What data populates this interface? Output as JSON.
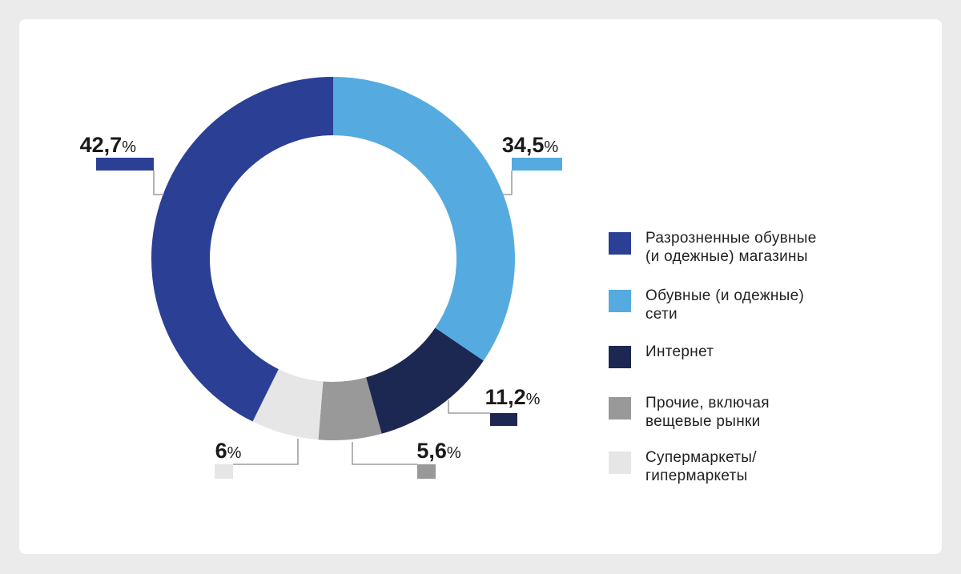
{
  "chart_data": {
    "type": "pie",
    "variant": "donut",
    "legend_position": "right",
    "slices": [
      {
        "label": "Разрозненные обувные\n(и одежные) магазины",
        "value": 42.7,
        "display": "42,7",
        "color": "#2b3f95"
      },
      {
        "label": "Обувные (и одежные)\nсети",
        "value": 34.5,
        "display": "34,5",
        "color": "#55abe0"
      },
      {
        "label": "Интернет",
        "value": 11.2,
        "display": "11,2",
        "color": "#1c2752"
      },
      {
        "label": "Прочие, включая\nвещевые рынки",
        "value": 5.6,
        "display": "5,6",
        "color": "#999999"
      },
      {
        "label": "Супермаркеты/\nгипермаркеты",
        "value": 6,
        "display": "6",
        "color": "#e6e6e6"
      }
    ],
    "percent_symbol": "%"
  }
}
